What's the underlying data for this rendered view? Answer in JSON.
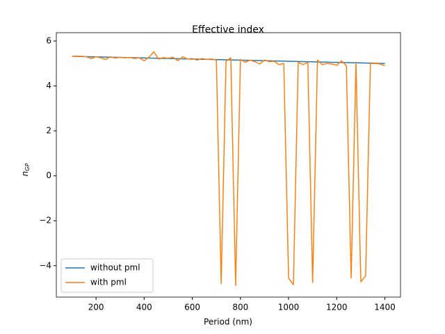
{
  "chart_data": {
    "type": "line",
    "title": "Effective index",
    "xlabel": "Period (nm)",
    "ylabel": {
      "base": "n",
      "subscript": "GP"
    },
    "x": [
      100,
      120,
      140,
      160,
      180,
      200,
      220,
      240,
      260,
      280,
      300,
      320,
      340,
      360,
      380,
      400,
      420,
      440,
      460,
      480,
      500,
      520,
      540,
      560,
      580,
      600,
      620,
      640,
      660,
      680,
      700,
      720,
      740,
      760,
      780,
      800,
      820,
      840,
      860,
      880,
      900,
      920,
      940,
      960,
      980,
      1000,
      1020,
      1040,
      1060,
      1080,
      1100,
      1120,
      1140,
      1160,
      1180,
      1200,
      1220,
      1240,
      1260,
      1280,
      1300,
      1320,
      1340,
      1360,
      1380,
      1400
    ],
    "series": [
      {
        "name": "without pml",
        "color": "#1f77b4",
        "x": [
          100,
          1400
        ],
        "values": [
          5.32,
          5.0
        ]
      },
      {
        "name": "with pml",
        "color": "#ff7f0e",
        "values": [
          5.32,
          5.33,
          5.32,
          5.3,
          5.22,
          5.3,
          5.25,
          5.18,
          5.3,
          5.24,
          5.28,
          5.25,
          5.27,
          5.22,
          5.25,
          5.12,
          5.28,
          5.52,
          5.2,
          5.26,
          5.23,
          5.28,
          5.12,
          5.3,
          5.2,
          5.22,
          5.15,
          5.22,
          5.18,
          5.2,
          5.15,
          -4.8,
          5.1,
          5.25,
          -4.88,
          5.18,
          5.05,
          5.15,
          5.08,
          4.98,
          5.15,
          5.08,
          5.1,
          4.95,
          5.0,
          -4.55,
          -4.85,
          5.05,
          4.95,
          5.05,
          -4.75,
          5.15,
          4.95,
          5.0,
          4.98,
          4.92,
          5.12,
          4.9,
          -4.55,
          5.05,
          -4.72,
          -4.45,
          5.0,
          5.0,
          4.98,
          4.9
        ]
      }
    ],
    "xlim": [
      35,
      1465
    ],
    "ylim": [
      -5.4,
      6.37
    ],
    "xticks": [
      200,
      400,
      600,
      800,
      1000,
      1200,
      1400
    ],
    "yticks": [
      {
        "value": -4,
        "label": "−4"
      },
      {
        "value": -2,
        "label": "−2"
      },
      0,
      2,
      4,
      6
    ],
    "legend": "lower left"
  }
}
